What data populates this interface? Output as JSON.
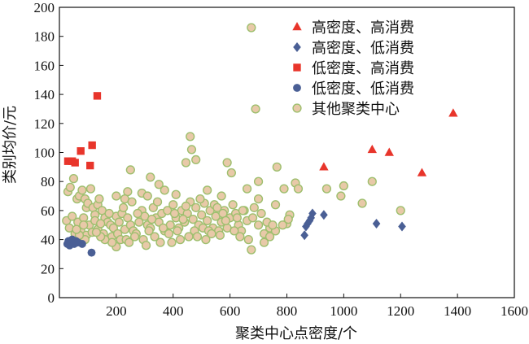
{
  "chart_data": {
    "type": "scatter",
    "title": "",
    "xlabel": "聚类中心点密度/个",
    "ylabel": "类别均价/元",
    "xlim": [
      0,
      1600
    ],
    "ylim": [
      0,
      200
    ],
    "xticks": [
      200,
      400,
      600,
      800,
      1000,
      1200,
      1400,
      1600
    ],
    "yticks": [
      0,
      20,
      40,
      60,
      80,
      100,
      120,
      140,
      160,
      180,
      200
    ],
    "grid": false,
    "legend_position": "top-right",
    "series": [
      {
        "name": "高密度、高消费",
        "marker": "triangle",
        "color": "#e8352b",
        "points": [
          [
            930,
            90
          ],
          [
            1100,
            102
          ],
          [
            1160,
            100
          ],
          [
            1275,
            86
          ],
          [
            1385,
            127
          ]
        ]
      },
      {
        "name": "高密度、低消费",
        "marker": "diamond",
        "color": "#4a5f95",
        "points": [
          [
            862,
            43
          ],
          [
            867,
            49
          ],
          [
            873,
            51
          ],
          [
            880,
            53
          ],
          [
            885,
            55
          ],
          [
            890,
            58
          ],
          [
            930,
            57
          ],
          [
            1115,
            51
          ],
          [
            1205,
            49
          ]
        ]
      },
      {
        "name": "低密度、高消费",
        "marker": "square",
        "color": "#e8352b",
        "points": [
          [
            30,
            94
          ],
          [
            45,
            94
          ],
          [
            55,
            93
          ],
          [
            75,
            101
          ],
          [
            115,
            105
          ],
          [
            108,
            91
          ],
          [
            133,
            139
          ]
        ]
      },
      {
        "name": "低密度、低消费",
        "marker": "circle",
        "color": "#4a5f95",
        "points": [
          [
            28,
            37
          ],
          [
            32,
            39
          ],
          [
            36,
            36
          ],
          [
            40,
            38
          ],
          [
            45,
            40
          ],
          [
            52,
            37
          ],
          [
            58,
            39
          ],
          [
            65,
            38
          ],
          [
            80,
            37
          ],
          [
            113,
            31
          ]
        ]
      },
      {
        "name": "其他聚类中心",
        "marker": "circle",
        "color": "#e8c9a8",
        "stroke": "#9ebf6e",
        "points": [
          [
            675,
            186
          ],
          [
            690,
            130
          ],
          [
            460,
            111
          ],
          [
            465,
            102
          ],
          [
            480,
            95
          ],
          [
            445,
            93
          ],
          [
            590,
            93
          ],
          [
            765,
            90
          ],
          [
            605,
            86
          ],
          [
            250,
            88
          ],
          [
            320,
            83
          ],
          [
            700,
            80
          ],
          [
            350,
            78
          ],
          [
            370,
            74
          ],
          [
            290,
            72
          ],
          [
            240,
            73
          ],
          [
            830,
            79
          ],
          [
            790,
            75
          ],
          [
            660,
            75
          ],
          [
            200,
            70
          ],
          [
            230,
            68
          ],
          [
            310,
            70
          ],
          [
            410,
            71
          ],
          [
            520,
            74
          ],
          [
            840,
            75
          ],
          [
            940,
            75
          ],
          [
            990,
            70
          ],
          [
            1100,
            80
          ],
          [
            1065,
            65
          ],
          [
            1200,
            60
          ],
          [
            1000,
            77
          ],
          [
            570,
            70
          ],
          [
            760,
            64
          ],
          [
            700,
            68
          ],
          [
            810,
            57
          ],
          [
            650,
            60
          ],
          [
            740,
            48
          ],
          [
            800,
            51
          ],
          [
            30,
            73
          ],
          [
            38,
            76
          ],
          [
            50,
            82
          ],
          [
            62,
            68
          ],
          [
            70,
            70
          ],
          [
            80,
            74
          ],
          [
            90,
            68
          ],
          [
            95,
            62
          ],
          [
            100,
            65
          ],
          [
            110,
            75
          ],
          [
            118,
            62
          ],
          [
            125,
            57
          ],
          [
            135,
            64
          ],
          [
            140,
            68
          ],
          [
            150,
            60
          ],
          [
            160,
            55
          ],
          [
            170,
            52
          ],
          [
            180,
            50
          ],
          [
            190,
            48
          ],
          [
            200,
            56
          ],
          [
            210,
            52
          ],
          [
            220,
            58
          ],
          [
            230,
            47
          ],
          [
            240,
            55
          ],
          [
            250,
            50
          ],
          [
            260,
            46
          ],
          [
            270,
            44
          ],
          [
            280,
            52
          ],
          [
            290,
            60
          ],
          [
            300,
            56
          ],
          [
            310,
            50
          ],
          [
            320,
            48
          ],
          [
            330,
            62
          ],
          [
            340,
            55
          ],
          [
            350,
            52
          ],
          [
            360,
            58
          ],
          [
            370,
            46
          ],
          [
            380,
            60
          ],
          [
            390,
            50
          ],
          [
            400,
            64
          ],
          [
            410,
            55
          ],
          [
            420,
            48
          ],
          [
            430,
            60
          ],
          [
            440,
            52
          ],
          [
            450,
            58
          ],
          [
            460,
            66
          ],
          [
            470,
            54
          ],
          [
            480,
            62
          ],
          [
            490,
            50
          ],
          [
            500,
            57
          ],
          [
            510,
            65
          ],
          [
            520,
            53
          ],
          [
            530,
            60
          ],
          [
            540,
            48
          ],
          [
            550,
            56
          ],
          [
            560,
            46
          ],
          [
            570,
            52
          ],
          [
            580,
            60
          ],
          [
            590,
            48
          ],
          [
            600,
            55
          ],
          [
            610,
            64
          ],
          [
            620,
            58
          ],
          [
            630,
            50
          ],
          [
            640,
            46
          ],
          [
            660,
            53
          ],
          [
            680,
            55
          ],
          [
            700,
            50
          ],
          [
            720,
            44
          ],
          [
            740,
            42
          ],
          [
            760,
            46
          ],
          [
            785,
            50
          ],
          [
            805,
            54
          ],
          [
            25,
            53
          ],
          [
            35,
            48
          ],
          [
            45,
            56
          ],
          [
            55,
            44
          ],
          [
            65,
            52
          ],
          [
            75,
            46
          ],
          [
            85,
            55
          ],
          [
            95,
            43
          ],
          [
            105,
            50
          ],
          [
            115,
            45
          ],
          [
            125,
            53
          ],
          [
            135,
            47
          ],
          [
            145,
            51
          ],
          [
            155,
            44
          ],
          [
            175,
            58
          ],
          [
            185,
            42
          ],
          [
            205,
            44
          ],
          [
            215,
            40
          ],
          [
            225,
            62
          ],
          [
            235,
            40
          ],
          [
            245,
            38
          ],
          [
            255,
            66
          ],
          [
            265,
            42
          ],
          [
            275,
            58
          ],
          [
            295,
            40
          ],
          [
            305,
            36
          ],
          [
            315,
            46
          ],
          [
            325,
            54
          ],
          [
            335,
            42
          ],
          [
            345,
            66
          ],
          [
            355,
            38
          ],
          [
            365,
            48
          ],
          [
            385,
            44
          ],
          [
            395,
            38
          ],
          [
            405,
            58
          ],
          [
            415,
            46
          ],
          [
            425,
            40
          ],
          [
            435,
            54
          ],
          [
            445,
            63
          ],
          [
            455,
            42
          ],
          [
            475,
            46
          ],
          [
            485,
            42
          ],
          [
            495,
            68
          ],
          [
            505,
            48
          ],
          [
            515,
            40
          ],
          [
            525,
            46
          ],
          [
            535,
            44
          ],
          [
            545,
            64
          ],
          [
            555,
            62
          ],
          [
            565,
            43
          ],
          [
            575,
            58
          ],
          [
            585,
            53
          ],
          [
            615,
            46
          ],
          [
            625,
            55
          ],
          [
            635,
            42
          ],
          [
            645,
            60
          ],
          [
            665,
            40
          ],
          [
            685,
            62
          ],
          [
            710,
            58
          ],
          [
            730,
            52
          ],
          [
            750,
            50
          ],
          [
            675,
            33
          ],
          [
            720,
            38
          ],
          [
            200,
            35
          ],
          [
            185,
            38
          ],
          [
            160,
            40
          ],
          [
            145,
            42
          ],
          [
            130,
            45
          ],
          [
            90,
            40
          ],
          [
            70,
            43
          ],
          [
            60,
            47
          ],
          [
            85,
            50
          ]
        ]
      }
    ]
  }
}
